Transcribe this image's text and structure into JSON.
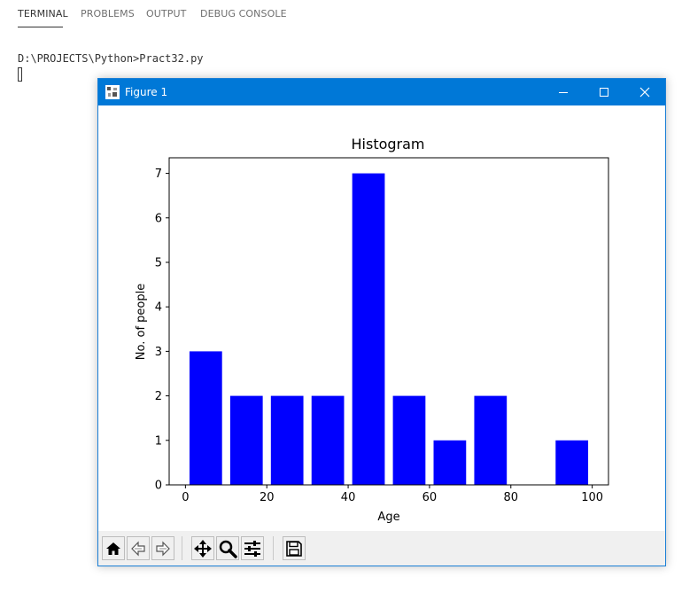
{
  "panel": {
    "tabs": [
      "TERMINAL",
      "PROBLEMS",
      "OUTPUT",
      "DEBUG CONSOLE"
    ],
    "active_tab": "TERMINAL"
  },
  "terminal": {
    "prompt_line": "D:\\PROJECTS\\Python>Pract32.py"
  },
  "window": {
    "title": "Figure 1",
    "accent_color": "#0078d7",
    "controls": [
      "minimize-icon",
      "maximize-icon",
      "close-icon"
    ]
  },
  "toolbar": {
    "buttons": [
      "home-icon",
      "back-icon",
      "forward-icon",
      "pan-icon",
      "zoom-icon",
      "configure-subplots-icon",
      "save-icon"
    ]
  },
  "chart_data": {
    "type": "bar",
    "title": "Histogram",
    "xlabel": "Age",
    "ylabel": "No. of people",
    "x": [
      5,
      15,
      25,
      35,
      45,
      55,
      65,
      75,
      85,
      95
    ],
    "values": [
      3,
      2,
      2,
      2,
      7,
      2,
      1,
      2,
      0,
      1
    ],
    "bar_width": 8,
    "bar_color": "#0000ff",
    "xlim": [
      -4,
      104
    ],
    "ylim": [
      0,
      7.35
    ],
    "xticks": [
      0,
      20,
      40,
      60,
      80,
      100
    ],
    "xtick_labels": [
      "0",
      "20",
      "40",
      "60",
      "80",
      "100"
    ],
    "yticks": [
      0,
      1,
      2,
      3,
      4,
      5,
      6,
      7
    ],
    "ytick_labels": [
      "0",
      "1",
      "2",
      "3",
      "4",
      "5",
      "6",
      "7"
    ],
    "grid": false,
    "legend": "none"
  }
}
